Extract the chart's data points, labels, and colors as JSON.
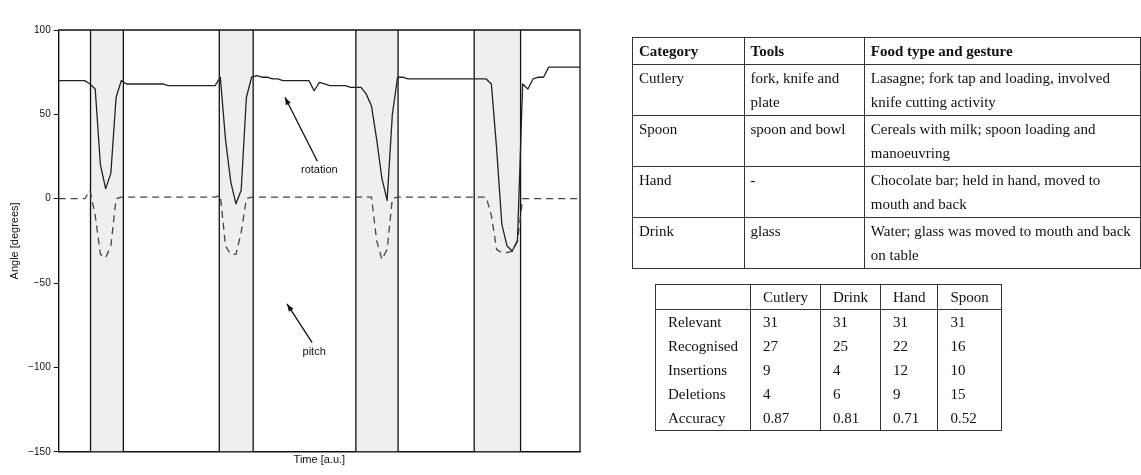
{
  "chart_data": [
    {
      "type": "line",
      "xlabel": "Time [a.u.]",
      "ylabel": "Angle [degrees]",
      "categories": [
        null,
        null,
        null,
        null,
        null,
        null,
        null,
        null,
        null,
        null,
        null,
        null,
        null,
        null,
        null,
        null,
        null,
        null,
        null,
        null,
        null,
        null,
        null,
        null,
        null,
        null,
        null,
        null,
        null,
        null,
        null,
        null,
        null,
        null,
        null,
        null,
        null,
        null,
        null,
        null,
        null,
        null,
        null,
        null,
        null,
        null,
        null,
        null,
        null,
        null,
        null,
        null,
        null,
        null,
        null,
        null,
        null,
        null,
        null,
        null,
        null,
        null,
        null,
        null,
        null,
        null,
        null,
        null,
        null,
        null,
        null,
        null,
        null,
        null,
        null,
        null,
        null,
        null,
        null,
        null,
        null,
        null,
        null,
        null,
        null,
        null,
        null,
        null,
        null,
        null,
        null,
        null,
        null,
        null,
        null,
        null,
        null,
        null,
        null,
        null,
        null
      ],
      "ylim": [
        -150,
        100
      ],
      "yticks": [
        {
          "value": -150,
          "label": "−150"
        },
        {
          "value": -100,
          "label": "−100"
        },
        {
          "value": -50,
          "label": "−50"
        },
        0,
        50,
        100
      ],
      "tick_labels": "y",
      "grid": false,
      "legend": false,
      "series": [
        {
          "color": "#222222",
          "line_style": "solid",
          "values": [
            70,
            70,
            70,
            70,
            70,
            70,
            68,
            65,
            20,
            6,
            15,
            60,
            70,
            68,
            68,
            68,
            68,
            68,
            68,
            68,
            68,
            67,
            67,
            67,
            67,
            67,
            67,
            67,
            67,
            67,
            67,
            72,
            35,
            10,
            -3,
            5,
            60,
            72,
            73,
            72,
            72,
            71,
            71,
            70,
            70,
            70,
            70,
            70,
            70,
            64,
            69,
            68,
            67,
            67,
            67,
            67,
            66,
            66,
            66,
            62,
            55,
            35,
            12,
            -1,
            50,
            72,
            72,
            71,
            71,
            71,
            71,
            71,
            71,
            71,
            71,
            71,
            71,
            71,
            71,
            71,
            71,
            71,
            71,
            68,
            30,
            -15,
            -28,
            -31,
            -25,
            68,
            65,
            71,
            72,
            72,
            78,
            78,
            78,
            78,
            78,
            78,
            78
          ]
        },
        {
          "color": "#444444",
          "line_style": "dashed",
          "values": [
            0,
            0,
            0,
            0,
            0,
            0,
            5,
            -10,
            -33,
            -35,
            -28,
            0,
            1,
            1,
            1,
            1,
            1,
            1,
            1,
            1,
            1,
            1,
            1,
            1,
            1,
            1,
            1,
            1,
            1,
            1,
            1,
            2,
            -28,
            -33,
            -33,
            -20,
            0,
            1,
            1,
            1,
            1,
            1,
            1,
            1,
            1,
            1,
            1,
            1,
            1,
            1,
            1,
            1,
            1,
            1,
            1,
            1,
            1,
            1,
            1,
            1,
            1,
            -25,
            -36,
            -30,
            0,
            1,
            1,
            1,
            1,
            1,
            1,
            1,
            1,
            1,
            1,
            1,
            1,
            1,
            1,
            1,
            1,
            1,
            1,
            -10,
            -30,
            -32,
            -32,
            -31,
            -25,
            0,
            0,
            0,
            0,
            0,
            0,
            0,
            0,
            0,
            0,
            0,
            0
          ]
        }
      ],
      "annotations": [
        "rotation",
        "pitch"
      ]
    },
    {
      "type": "other",
      "categories": [
        "Category",
        "Tools",
        "Food type and gesture"
      ],
      "annotations": [
        "Cutlery",
        "fork, knife and plate",
        "Lasagne; fork tap and loading, involved knife cutting activity",
        "Spoon",
        "spoon and bowl",
        "Cereals with milk; spoon loading and manoeuvring",
        "Hand",
        "-",
        "Chocolate bar; held in hand, moved to mouth and back",
        "Drink",
        "glass",
        "Water; glass was moved to mouth and back on table"
      ]
    },
    {
      "type": "heatmap",
      "data_labels": true,
      "categories": [
        "Cutlery",
        "Drink",
        "Hand",
        "Spoon"
      ],
      "y_categories": [
        "Relevant",
        "Recognised",
        "Insertions",
        "Deletions",
        "Accuracy"
      ],
      "cells": [
        [
          31,
          31,
          31,
          31
        ],
        [
          27,
          25,
          22,
          16
        ],
        [
          9,
          4,
          12,
          10
        ],
        [
          4,
          6,
          9,
          15
        ],
        [
          0.87,
          0.81,
          0.71,
          0.52
        ]
      ]
    }
  ]
}
